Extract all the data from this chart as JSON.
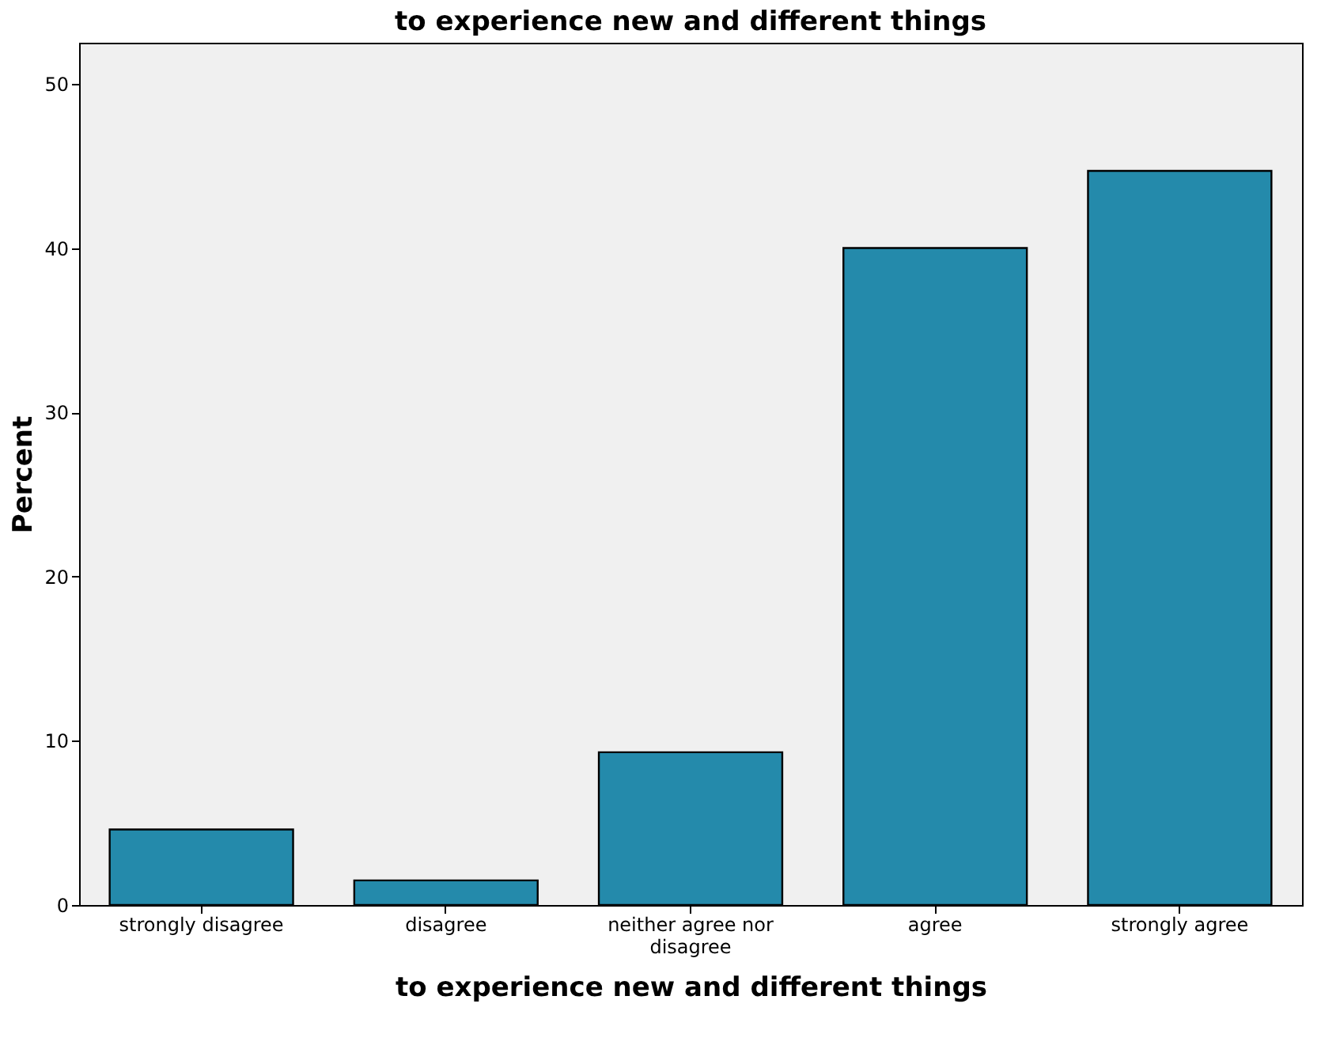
{
  "chart_data": {
    "type": "bar",
    "title": "to experience new and different things",
    "xlabel": "to experience new and different things",
    "ylabel": "Percent",
    "categories": [
      "strongly disagree",
      "disagree",
      "neither agree nor disagree",
      "agree",
      "strongly agree"
    ],
    "values": [
      4.6,
      1.5,
      9.3,
      40.0,
      44.7
    ],
    "color": "#248aab",
    "ylim": [
      0,
      52.5
    ],
    "yticks": [
      0,
      10,
      20,
      30,
      40,
      50
    ],
    "grid": false
  }
}
